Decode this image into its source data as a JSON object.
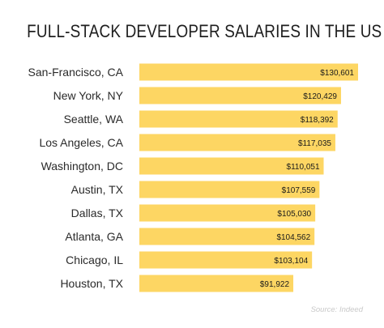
{
  "title": "FULL-STACK DEVELOPER SALARIES IN THE US",
  "source": "Source: Indeed",
  "colors": {
    "bar": "#FDD663",
    "category_text": "#2a2a2a",
    "value_text": "#1a1a1a"
  },
  "chart_data": {
    "type": "bar",
    "orientation": "horizontal",
    "title": "FULL-STACK DEVELOPER SALARIES IN THE US",
    "categories": [
      "San-Francisco, CA",
      "New York, NY",
      "Seattle, WA",
      "Los Angeles, CA",
      "Washington, DC",
      "Austin, TX",
      "Dallas, TX",
      "Atlanta, GA",
      "Chicago, IL",
      "Houston, TX"
    ],
    "values": [
      130601,
      120429,
      118392,
      117035,
      110051,
      107559,
      105030,
      104562,
      103104,
      91922
    ],
    "value_labels": [
      "$130,601",
      "$120,429",
      "$118,392",
      "$117,035",
      "$110,051",
      "$107,559",
      "$105,030",
      "$104,562",
      "$103,104",
      "$91,922"
    ],
    "xlabel": "",
    "ylabel": "",
    "xlim": [
      0,
      130601
    ],
    "grid": false,
    "legend": "none"
  }
}
